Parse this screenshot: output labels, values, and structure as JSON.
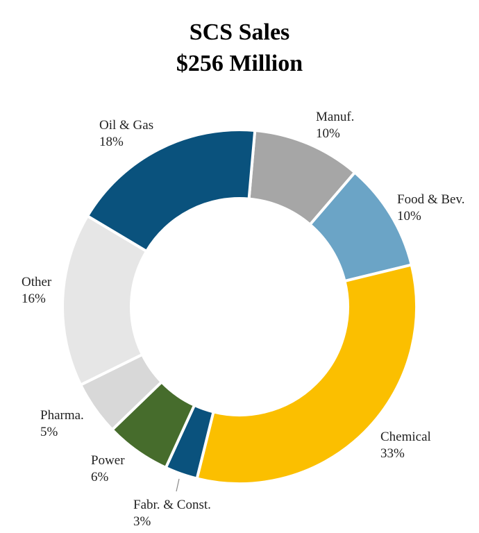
{
  "chart_data": {
    "type": "pie",
    "style": "donut",
    "title": "SCS Sales",
    "subtitle": "$256 Million",
    "slices": [
      {
        "name": "Manuf.",
        "value": 10,
        "label": "10%",
        "color": "#a6a6a6"
      },
      {
        "name": "Food & Bev.",
        "value": 10,
        "label": "10%",
        "color": "#6ba4c6"
      },
      {
        "name": "Chemical",
        "value": 33,
        "label": "33%",
        "color": "#fbbf00"
      },
      {
        "name": "Fabr. & Const.",
        "value": 3,
        "label": "3%",
        "color": "#0a527d"
      },
      {
        "name": "Power",
        "value": 6,
        "label": "6%",
        "color": "#466c2c"
      },
      {
        "name": "Pharma.",
        "value": 5,
        "label": "5%",
        "color": "#d8d8d8"
      },
      {
        "name": "Other",
        "value": 16,
        "label": "16%",
        "color": "#e6e6e6"
      },
      {
        "name": "Oil & Gas",
        "value": 18,
        "label": "18%",
        "color": "#0a527d"
      }
    ]
  }
}
